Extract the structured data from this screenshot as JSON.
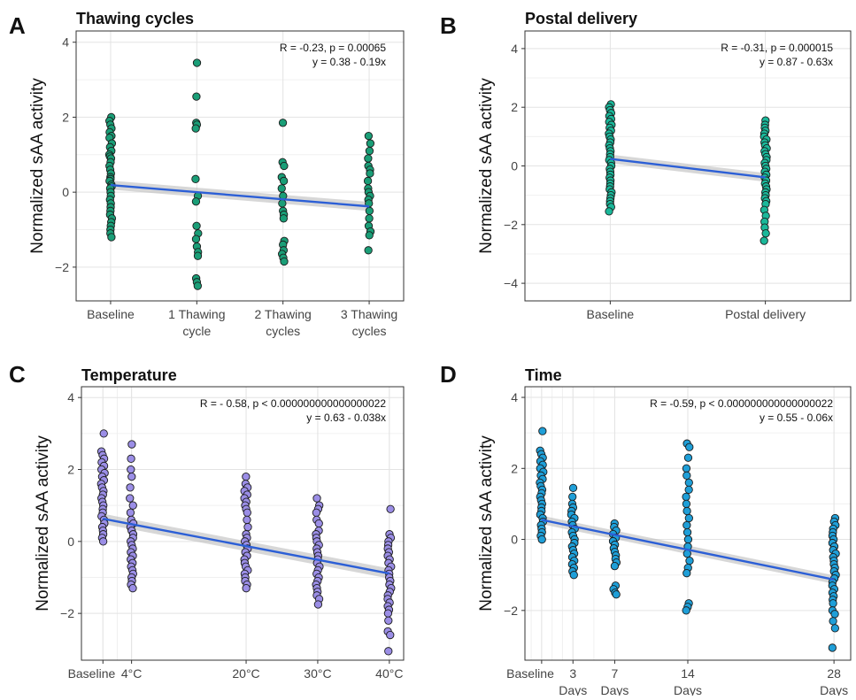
{
  "chart_data": [
    {
      "letter": "A",
      "title": "Thawing cycles",
      "type": "scatter",
      "ylabel": "Normalized sAA activity",
      "ylim": [
        -2.9,
        4.3
      ],
      "yticks": [
        -2,
        0,
        2,
        4
      ],
      "xaxis": "categorical",
      "xlim": [
        0.6,
        4.4
      ],
      "categories": [
        {
          "x": 1,
          "label": [
            "Baseline"
          ]
        },
        {
          "x": 2,
          "label": [
            "1 Thawing",
            "cycle"
          ]
        },
        {
          "x": 3,
          "label": [
            "2 Thawing",
            "cycles"
          ]
        },
        {
          "x": 4,
          "label": [
            "3 Thawing",
            "cycles"
          ]
        }
      ],
      "annotation": [
        "R = -0.23, p = 0.00065",
        "y = 0.38 - 0.19x"
      ],
      "point_color": "#1a9e77",
      "line": {
        "x0": 1,
        "y0": 0.19,
        "x1": 4,
        "y1": -0.38,
        "ci": 0.12
      },
      "points": [
        {
          "x": 1,
          "y": [
            2.0,
            1.9,
            1.8,
            1.7,
            1.6,
            1.5,
            1.45,
            1.3,
            1.2,
            1.1,
            1.0,
            0.95,
            0.9,
            0.8,
            0.7,
            0.6,
            0.5,
            0.4,
            0.35,
            0.3,
            0.2,
            0.15,
            0.1,
            0.0,
            -0.1,
            -0.2,
            -0.3,
            -0.4,
            -0.5,
            -0.6,
            -0.7,
            -0.8,
            -0.9,
            -1.0,
            -1.1,
            -1.2
          ]
        },
        {
          "x": 2,
          "y": [
            3.45,
            2.55,
            1.85,
            1.8,
            1.7,
            0.35,
            -0.1,
            -0.25,
            -0.9,
            -1.1,
            -1.25,
            -1.45,
            -1.6,
            -1.7,
            -2.3,
            -2.4,
            -2.5
          ]
        },
        {
          "x": 3,
          "y": [
            1.85,
            0.8,
            0.7,
            0.4,
            0.3,
            0.1,
            -0.1,
            -0.3,
            -0.5,
            -0.6,
            -0.7,
            -1.3,
            -1.4,
            -1.55,
            -1.65,
            -1.75,
            -1.85
          ]
        },
        {
          "x": 4,
          "y": [
            1.5,
            1.3,
            1.1,
            0.9,
            0.7,
            0.6,
            0.5,
            0.3,
            0.1,
            0.0,
            -0.1,
            -0.2,
            -0.3,
            -0.5,
            -0.7,
            -0.9,
            -1.05,
            -1.15,
            -1.55
          ]
        }
      ]
    },
    {
      "letter": "B",
      "title": "Postal delivery",
      "type": "scatter",
      "ylabel": "Normalized sAA activity",
      "ylim": [
        -4.6,
        4.6
      ],
      "yticks": [
        -4,
        -2,
        0,
        2,
        4
      ],
      "xaxis": "categorical",
      "xlim": [
        0.45,
        2.55
      ],
      "categories": [
        {
          "x": 1,
          "label": [
            "Baseline"
          ]
        },
        {
          "x": 2,
          "label": [
            "Postal delivery"
          ]
        }
      ],
      "annotation": [
        "R = -0.31, p = 0.000015",
        "y = 0.87 - 0.63x"
      ],
      "point_color": "#1ab89a",
      "line": {
        "x0": 1,
        "y0": 0.24,
        "x1": 2,
        "y1": -0.39,
        "ci": 0.15
      },
      "points": [
        {
          "x": 1,
          "y": [
            2.1,
            2.0,
            1.9,
            1.8,
            1.7,
            1.6,
            1.5,
            1.4,
            1.3,
            1.2,
            1.1,
            1.0,
            0.9,
            0.8,
            0.7,
            0.6,
            0.5,
            0.4,
            0.3,
            0.2,
            0.1,
            0.0,
            -0.1,
            -0.2,
            -0.3,
            -0.4,
            -0.5,
            -0.6,
            -0.7,
            -0.8,
            -0.9,
            -1.0,
            -1.1,
            -1.2,
            -1.3,
            -1.4,
            -1.55
          ]
        },
        {
          "x": 2,
          "y": [
            1.55,
            1.4,
            1.3,
            1.2,
            1.1,
            1.0,
            0.9,
            0.8,
            0.7,
            0.6,
            0.5,
            0.4,
            0.3,
            0.2,
            0.1,
            0.0,
            -0.1,
            -0.2,
            -0.3,
            -0.4,
            -0.5,
            -0.6,
            -0.7,
            -0.8,
            -0.9,
            -1.0,
            -1.1,
            -1.2,
            -1.3,
            -1.5,
            -1.7,
            -1.9,
            -2.1,
            -2.3,
            -2.55
          ]
        }
      ]
    },
    {
      "letter": "C",
      "title": "Temperature",
      "type": "scatter",
      "ylabel": "Normalized sAA activity",
      "ylim": [
        -3.3,
        4.3
      ],
      "yticks": [
        -2,
        0,
        2,
        4
      ],
      "xaxis": "numeric",
      "xlim": [
        -3,
        42
      ],
      "minor_x": [
        0,
        2,
        4,
        20,
        30,
        40
      ],
      "categories": [
        {
          "x": 0,
          "label": [
            "Baseline"
          ]
        },
        {
          "x": 4,
          "label": [
            "4°C"
          ]
        },
        {
          "x": 20,
          "label": [
            "20°C"
          ]
        },
        {
          "x": 30,
          "label": [
            "30°C"
          ]
        },
        {
          "x": 40,
          "label": [
            "40°C"
          ]
        }
      ],
      "annotation": [
        "R = - 0.58, p < 0.000000000000000022",
        "y = 0.63 - 0.038x"
      ],
      "point_color": "#9b8ee6",
      "line": {
        "x0": 0,
        "y0": 0.63,
        "x1": 40,
        "y1": -0.89,
        "ci": 0.14
      },
      "points": [
        {
          "x": 0,
          "y": [
            3.0,
            2.5,
            2.4,
            2.3,
            2.2,
            2.1,
            2.0,
            1.9,
            1.8,
            1.7,
            1.6,
            1.5,
            1.4,
            1.3,
            1.2,
            1.1,
            1.0,
            0.9,
            0.8,
            0.7,
            0.6,
            0.5,
            0.4,
            0.3,
            0.2,
            0.1,
            0.0
          ]
        },
        {
          "x": 4,
          "y": [
            2.7,
            2.3,
            2.0,
            1.8,
            1.5,
            1.2,
            1.0,
            0.8,
            0.6,
            0.5,
            0.4,
            0.3,
            0.2,
            0.1,
            0.0,
            -0.1,
            -0.2,
            -0.3,
            -0.4,
            -0.5,
            -0.6,
            -0.7,
            -0.8,
            -0.9,
            -1.0,
            -1.1,
            -1.2,
            -1.3
          ]
        },
        {
          "x": 20,
          "y": [
            1.8,
            1.6,
            1.5,
            1.4,
            1.3,
            1.2,
            1.1,
            1.0,
            0.9,
            0.8,
            0.6,
            0.4,
            0.2,
            0.1,
            0.0,
            -0.1,
            -0.2,
            -0.3,
            -0.4,
            -0.5,
            -0.6,
            -0.7,
            -0.8,
            -0.9,
            -1.0,
            -1.1,
            -1.2,
            -1.3
          ]
        },
        {
          "x": 30,
          "y": [
            1.2,
            1.0,
            0.9,
            0.8,
            0.6,
            0.5,
            0.3,
            0.2,
            0.1,
            0.0,
            -0.1,
            -0.2,
            -0.3,
            -0.4,
            -0.5,
            -0.6,
            -0.7,
            -0.8,
            -0.9,
            -1.0,
            -1.1,
            -1.2,
            -1.3,
            -1.4,
            -1.5,
            -1.6,
            -1.75
          ]
        },
        {
          "x": 40,
          "y": [
            0.9,
            0.2,
            0.1,
            0.0,
            -0.1,
            -0.2,
            -0.3,
            -0.4,
            -0.5,
            -0.6,
            -0.7,
            -0.8,
            -0.9,
            -1.0,
            -1.1,
            -1.2,
            -1.3,
            -1.4,
            -1.5,
            -1.6,
            -1.7,
            -1.8,
            -1.9,
            -2.0,
            -2.2,
            -2.5,
            -2.6,
            -3.05
          ]
        }
      ]
    },
    {
      "letter": "D",
      "title": "Time",
      "type": "scatter",
      "ylabel": "Normalized sAA activity",
      "ylim": [
        -3.4,
        4.3
      ],
      "yticks": [
        -2,
        0,
        2,
        4
      ],
      "xaxis": "numeric",
      "xlim": [
        -1.6,
        29.6
      ],
      "minor_x": [
        -1,
        0,
        1,
        2,
        3,
        5,
        7,
        14,
        28
      ],
      "categories": [
        {
          "x": 0,
          "label": [
            "Baseline"
          ]
        },
        {
          "x": 3,
          "label": [
            "3",
            "Days"
          ]
        },
        {
          "x": 7,
          "label": [
            "7",
            "Days"
          ]
        },
        {
          "x": 14,
          "label": [
            "14",
            "Days"
          ]
        },
        {
          "x": 28,
          "label": [
            "28",
            "Days"
          ]
        }
      ],
      "annotation": [
        "R = -0.59, p < 0.000000000000000022",
        "y = 0.55 - 0.06x"
      ],
      "point_color": "#1f9fd8",
      "line": {
        "x0": 0,
        "y0": 0.55,
        "x1": 28,
        "y1": -1.13,
        "ci": 0.12
      },
      "points": [
        {
          "x": 0,
          "y": [
            3.05,
            2.5,
            2.4,
            2.3,
            2.2,
            2.1,
            2.0,
            1.9,
            1.8,
            1.7,
            1.6,
            1.5,
            1.4,
            1.3,
            1.2,
            1.1,
            1.0,
            0.9,
            0.8,
            0.7,
            0.6,
            0.5,
            0.4,
            0.3,
            0.2,
            0.1,
            0.0
          ]
        },
        {
          "x": 3,
          "y": [
            1.45,
            1.2,
            1.0,
            0.9,
            0.8,
            0.7,
            0.6,
            0.5,
            0.4,
            0.3,
            0.2,
            0.1,
            0.0,
            -0.1,
            -0.2,
            -0.3,
            -0.4,
            -0.5,
            -0.6,
            -0.7,
            -0.8,
            -0.9,
            -1.0
          ]
        },
        {
          "x": 7,
          "y": [
            0.45,
            0.35,
            0.25,
            0.15,
            0.05,
            -0.05,
            -0.15,
            -0.25,
            -0.35,
            -0.45,
            -0.55,
            -0.65,
            -0.75,
            -1.3,
            -1.4,
            -1.5,
            -1.55
          ]
        },
        {
          "x": 14,
          "y": [
            2.7,
            2.6,
            2.3,
            2.0,
            1.8,
            1.6,
            1.4,
            1.2,
            1.0,
            0.8,
            0.6,
            0.4,
            0.2,
            0.0,
            -0.2,
            -0.4,
            -0.6,
            -0.8,
            -0.95,
            -1.8,
            -1.9,
            -2.0
          ]
        },
        {
          "x": 28,
          "y": [
            0.6,
            0.5,
            0.4,
            0.3,
            0.2,
            0.1,
            0.0,
            -0.1,
            -0.2,
            -0.3,
            -0.4,
            -0.5,
            -0.6,
            -0.7,
            -0.8,
            -0.9,
            -1.0,
            -1.1,
            -1.2,
            -1.3,
            -1.4,
            -1.5,
            -1.6,
            -1.7,
            -1.8,
            -2.0,
            -2.1,
            -2.3,
            -2.5,
            -3.05
          ]
        }
      ]
    }
  ]
}
